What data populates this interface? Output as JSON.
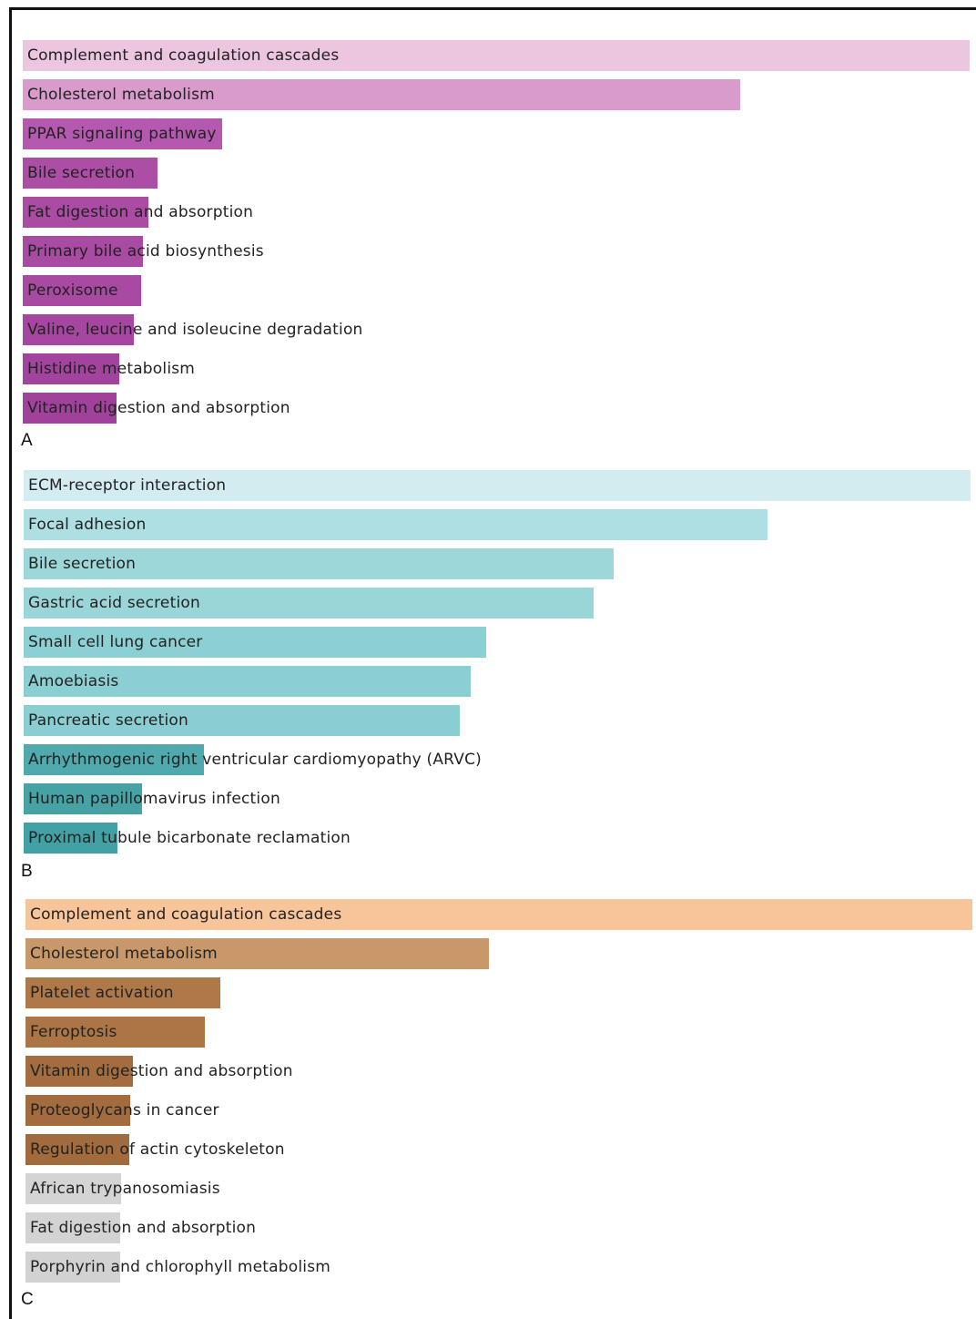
{
  "chart_data": [
    {
      "type": "bar",
      "orientation": "horizontal",
      "panel_label": "A",
      "categories": [
        "Complement and coagulation cascades",
        "Cholesterol metabolism",
        "PPAR signaling pathway",
        "Bile secretion",
        "Fat digestion and absorption",
        "Primary bile acid biosynthesis",
        "Peroxisome",
        "Valine, leucine and isoleucine degradation",
        "Histidine metabolism",
        "Vitamin digestion and absorption"
      ],
      "values": [
        1.0,
        0.758,
        0.211,
        0.142,
        0.133,
        0.127,
        0.125,
        0.117,
        0.102,
        0.099
      ],
      "colors": [
        "#ecc6df",
        "#d99bcc",
        "#b559b0",
        "#ac4ea6",
        "#aa4ca4",
        "#a94aa3",
        "#a849a2",
        "#a547a0",
        "#a2449d",
        "#a0429b"
      ],
      "axes_shown": false,
      "legend": "none"
    },
    {
      "type": "bar",
      "orientation": "horizontal",
      "panel_label": "B",
      "categories": [
        "ECM-receptor interaction",
        "Focal adhesion",
        "Bile secretion",
        "Gastric acid secretion",
        "Small cell lung cancer",
        "Amoebiasis",
        "Pancreatic secretion",
        "Arrhythmogenic right ventricular cardiomyopathy (ARVC)",
        "Human papillomavirus infection",
        "Proximal tubule bicarbonate reclamation"
      ],
      "values": [
        1.0,
        0.786,
        0.623,
        0.602,
        0.488,
        0.472,
        0.461,
        0.19,
        0.125,
        0.099
      ],
      "colors": [
        "#d2ecef",
        "#aedfe2",
        "#9dd7da",
        "#9ad5d8",
        "#8dd0d3",
        "#8ccfd2",
        "#8bced1",
        "#4fa9ad",
        "#47a2a6",
        "#43a0a4"
      ],
      "axes_shown": false,
      "legend": "none"
    },
    {
      "type": "bar",
      "orientation": "horizontal",
      "panel_label": "C",
      "categories": [
        "Complement and coagulation cascades",
        "Cholesterol metabolism",
        "Platelet activation",
        "Ferroptosis",
        "Vitamin digestion and absorption",
        "Proteoglycans in cancer",
        "Regulation of actin cytoskeleton",
        "African trypanosomiasis",
        "Fat digestion and absorption",
        "Porphyrin and chlorophyll metabolism"
      ],
      "values": [
        1.0,
        0.489,
        0.206,
        0.189,
        0.113,
        0.111,
        0.11,
        0.101,
        0.1,
        0.1
      ],
      "colors": [
        "#f8c49a",
        "#c9986a",
        "#ae7848",
        "#ab7545",
        "#a36d3f",
        "#a26c3e",
        "#a16b3d",
        "#d4d4d4",
        "#d3d3d3",
        "#d2d2d2"
      ],
      "axes_shown": false,
      "legend": "none"
    }
  ]
}
